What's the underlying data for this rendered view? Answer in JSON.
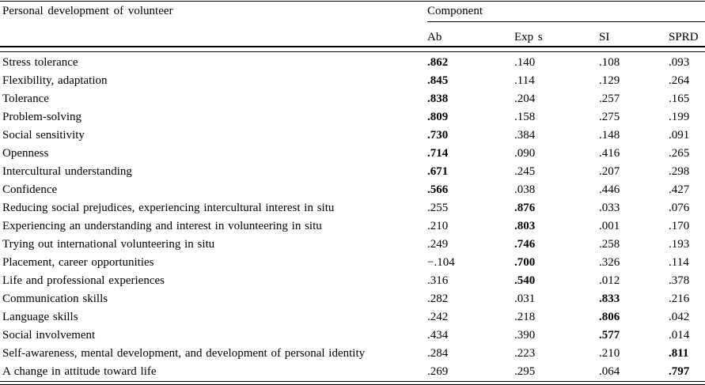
{
  "table": {
    "row_header_title": "Personal development of volunteer",
    "group_header": "Component",
    "columns": [
      "Ab",
      "Exp s",
      "SI",
      "SPRD"
    ],
    "rows": [
      {
        "label": "Stress tolerance",
        "values": [
          ".862",
          ".140",
          ".108",
          ".093"
        ],
        "bold_col": 0
      },
      {
        "label": "Flexibility, adaptation",
        "values": [
          ".845",
          ".114",
          ".129",
          ".264"
        ],
        "bold_col": 0
      },
      {
        "label": "Tolerance",
        "values": [
          ".838",
          ".204",
          ".257",
          ".165"
        ],
        "bold_col": 0
      },
      {
        "label": "Problem-solving",
        "values": [
          ".809",
          ".158",
          ".275",
          ".199"
        ],
        "bold_col": 0
      },
      {
        "label": "Social sensitivity",
        "values": [
          ".730",
          ".384",
          ".148",
          ".091"
        ],
        "bold_col": 0
      },
      {
        "label": "Openness",
        "values": [
          ".714",
          ".090",
          ".416",
          ".265"
        ],
        "bold_col": 0
      },
      {
        "label": "Intercultural understanding",
        "values": [
          ".671",
          ".245",
          ".207",
          ".298"
        ],
        "bold_col": 0
      },
      {
        "label": "Confidence",
        "values": [
          ".566",
          ".038",
          ".446",
          ".427"
        ],
        "bold_col": 0
      },
      {
        "label": "Reducing social prejudices, experiencing intercultural interest in situ",
        "values": [
          ".255",
          ".876",
          ".033",
          ".076"
        ],
        "bold_col": 1
      },
      {
        "label": "Experiencing an understanding and interest in volunteering in situ",
        "values": [
          ".210",
          ".803",
          ".001",
          ".170"
        ],
        "bold_col": 1
      },
      {
        "label": "Trying out international volunteering in situ",
        "values": [
          ".249",
          ".746",
          ".258",
          ".193"
        ],
        "bold_col": 1
      },
      {
        "label": "Placement, career opportunities",
        "values": [
          "−.104",
          ".700",
          ".326",
          ".114"
        ],
        "bold_col": 1
      },
      {
        "label": "Life and professional experiences",
        "values": [
          ".316",
          ".540",
          ".012",
          ".378"
        ],
        "bold_col": 1
      },
      {
        "label": "Communication skills",
        "values": [
          ".282",
          ".031",
          ".833",
          ".216"
        ],
        "bold_col": 2
      },
      {
        "label": "Language skills",
        "values": [
          ".242",
          ".218",
          ".806",
          ".042"
        ],
        "bold_col": 2
      },
      {
        "label": "Social involvement",
        "values": [
          ".434",
          ".390",
          ".577",
          ".014"
        ],
        "bold_col": 2
      },
      {
        "label": "Self-awareness, mental development, and development of personal identity",
        "values": [
          ".284",
          ".223",
          ".210",
          ".811"
        ],
        "bold_col": 3
      },
      {
        "label": "A change in attitude toward life",
        "values": [
          ".269",
          ".295",
          ".064",
          ".797"
        ],
        "bold_col": 3
      }
    ]
  }
}
